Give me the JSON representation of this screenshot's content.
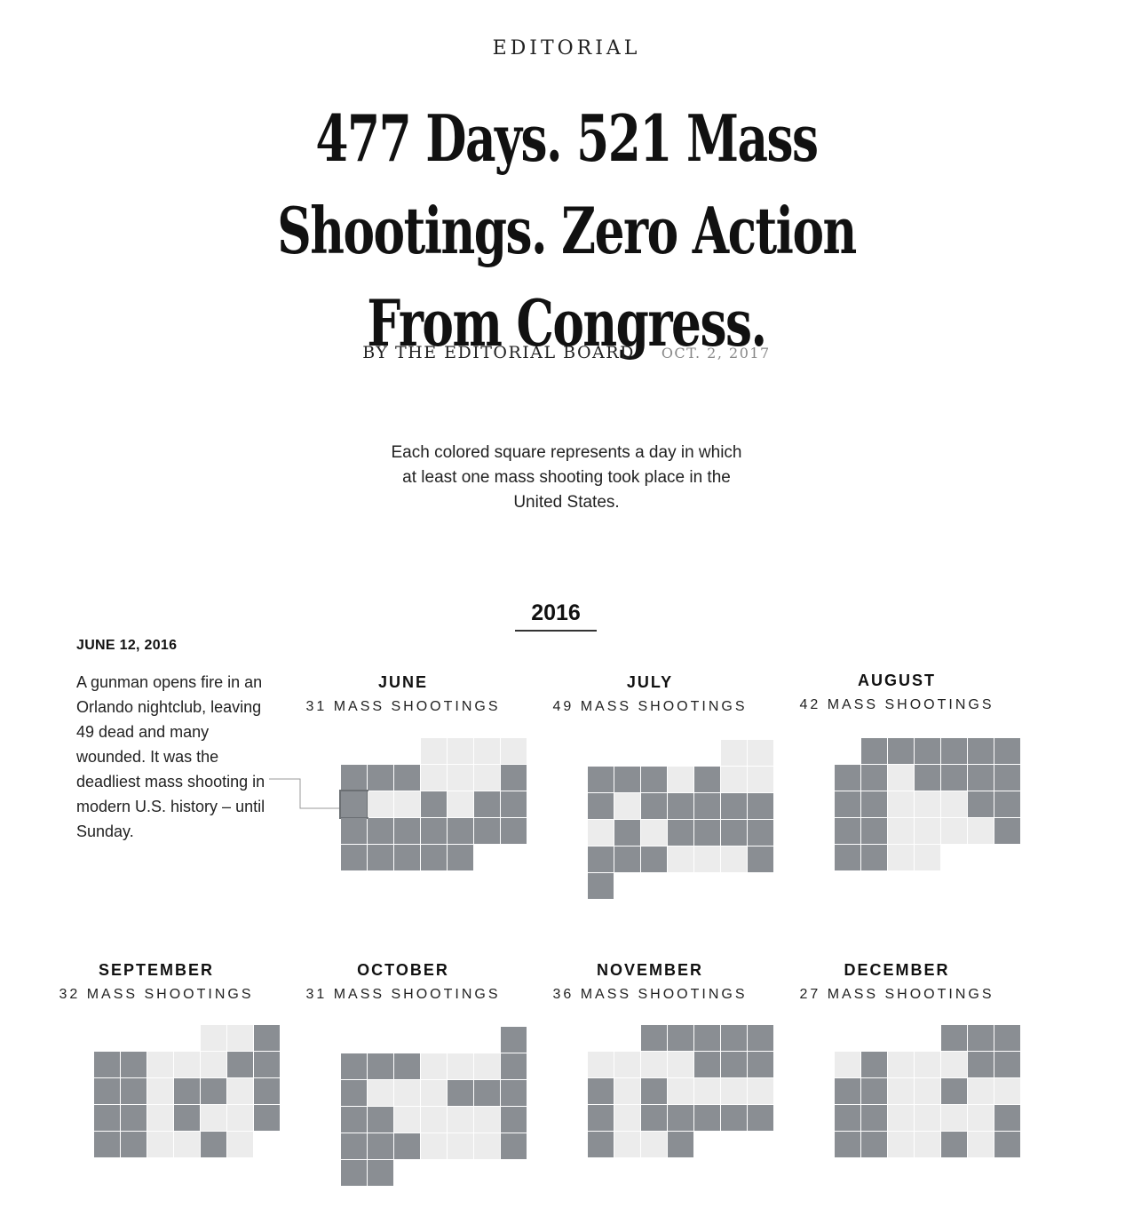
{
  "kicker": "EDITORIAL",
  "headline": "477 Days. 521 Mass Shootings. Zero Action From Congress.",
  "byline": {
    "author": "BY THE EDITORIAL BOARD",
    "date": "OCT. 2, 2017"
  },
  "intro": "Each colored square represents a day in which at least one mass shooting took place in the United States.",
  "year": "2016",
  "annotation": {
    "date": "JUNE 12, 2016",
    "text": "A gunman opens fire in an Orlando nightclub, leaving 49 dead and many wounded. It was the deadliest mass shooting in modern U.S. history – until Sunday."
  },
  "colors": {
    "shooting_day": "#8a8e93",
    "no_shooting_day": "#ececec"
  },
  "months": [
    {
      "name": "JUNE",
      "count_label": "31 MASS SHOOTINGS",
      "start_weekday": 3,
      "days": 30,
      "shooting_days": [
        5,
        6,
        7,
        11,
        12,
        15,
        17,
        18,
        19,
        20,
        21,
        22,
        23,
        24,
        25,
        26,
        27,
        28,
        29,
        30
      ],
      "highlight_day": 12
    },
    {
      "name": "JULY",
      "count_label": "49 MASS SHOOTINGS",
      "start_weekday": 5,
      "days": 31,
      "shooting_days": [
        3,
        4,
        5,
        7,
        10,
        12,
        13,
        14,
        15,
        16,
        18,
        20,
        21,
        22,
        23,
        24,
        25,
        26,
        30,
        31
      ]
    },
    {
      "name": "AUGUST",
      "count_label": "42 MASS SHOOTINGS",
      "start_weekday": 1,
      "days": 31,
      "shooting_days": [
        1,
        2,
        3,
        4,
        5,
        6,
        7,
        8,
        10,
        11,
        12,
        13,
        14,
        15,
        19,
        20,
        21,
        22,
        27,
        28,
        29
      ]
    },
    {
      "name": "SEPTEMBER",
      "count_label": "32 MASS SHOOTINGS",
      "start_weekday": 4,
      "days": 30,
      "shooting_days": [
        3,
        4,
        5,
        9,
        10,
        11,
        12,
        14,
        15,
        17,
        18,
        19,
        21,
        24,
        25,
        26,
        29
      ]
    },
    {
      "name": "OCTOBER",
      "count_label": "31 MASS SHOOTINGS",
      "start_weekday": 6,
      "days": 31,
      "shooting_days": [
        1,
        2,
        3,
        4,
        8,
        9,
        13,
        14,
        15,
        16,
        17,
        22,
        23,
        24,
        25,
        29,
        30,
        31
      ]
    },
    {
      "name": "NOVEMBER",
      "count_label": "36 MASS SHOOTINGS",
      "start_weekday": 2,
      "days": 30,
      "shooting_days": [
        1,
        2,
        3,
        4,
        5,
        10,
        11,
        12,
        13,
        15,
        20,
        22,
        23,
        24,
        25,
        26,
        27,
        30
      ]
    },
    {
      "name": "DECEMBER",
      "count_label": "27 MASS SHOOTINGS",
      "start_weekday": 4,
      "days": 31,
      "shooting_days": [
        1,
        2,
        3,
        5,
        9,
        10,
        11,
        12,
        15,
        18,
        19,
        24,
        25,
        26,
        29,
        31
      ]
    }
  ]
}
